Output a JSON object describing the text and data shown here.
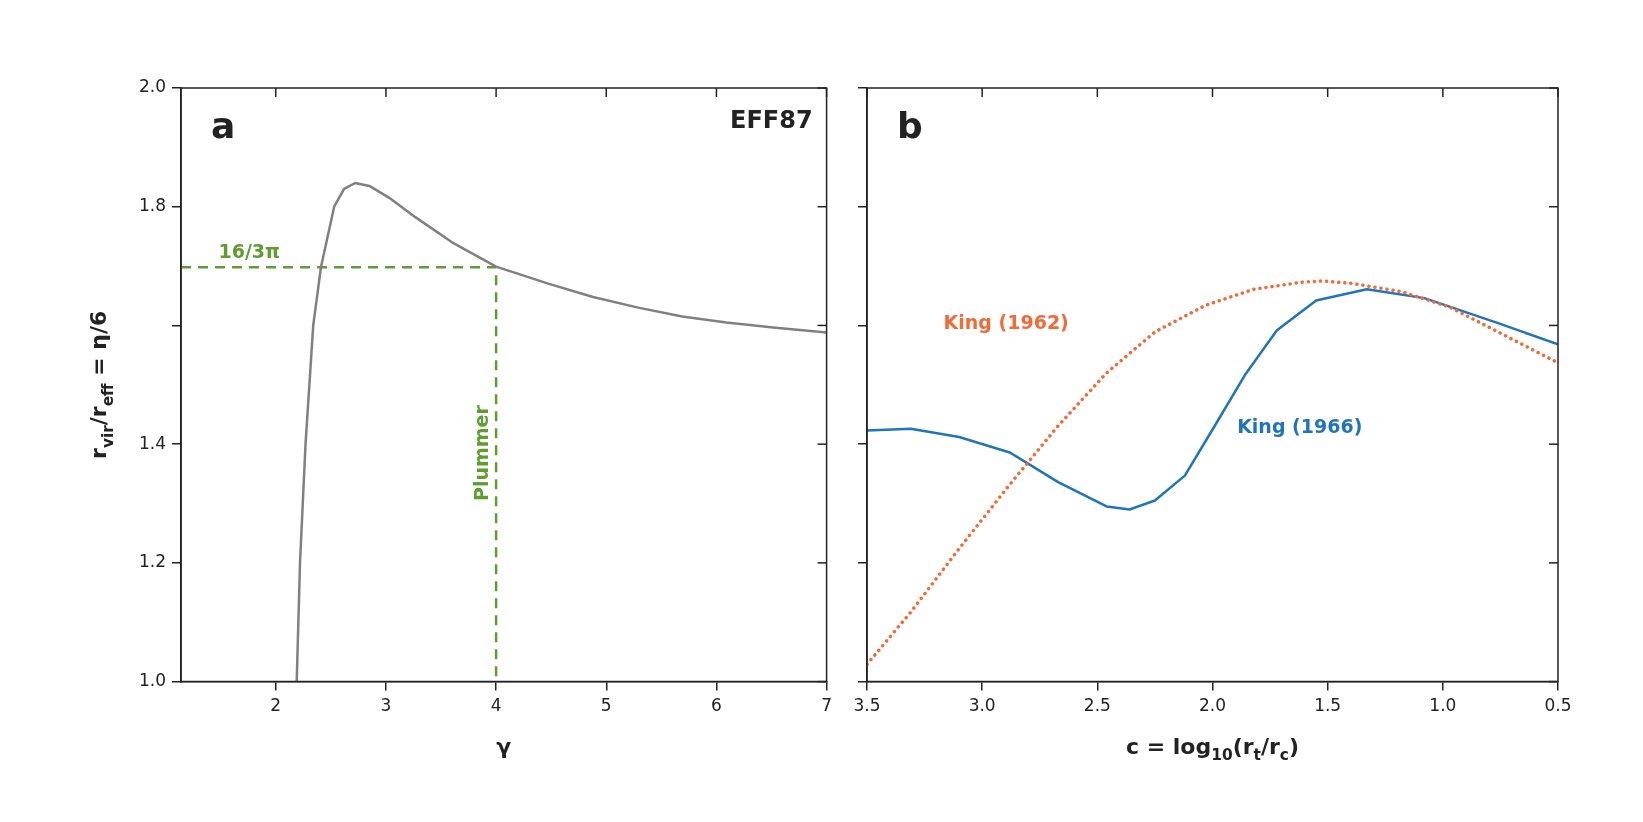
{
  "chart_data": [
    {
      "type": "line",
      "xlabel": "γ",
      "ylabel": "r$_{vir}$/r$_{eff}$ = η/6",
      "xlim": [
        1.14,
        7
      ],
      "ylim": [
        1,
        2
      ],
      "xticks": [
        2,
        3,
        4,
        5,
        6,
        7
      ],
      "yticks": [
        {
          "value": 1,
          "label": "1.0"
        },
        1.2,
        1.4,
        {
          "value": 1.6,
          "label": null
        },
        1.8,
        {
          "value": 2,
          "label": "2.0"
        }
      ],
      "annotations": [
        "a",
        "EFF87",
        {
          "text": "16/3π",
          "x": 1.48,
          "y": 1.698
        },
        {
          "text": "Plummer",
          "x": 4,
          "y": 1.385
        }
      ],
      "series": [
        {
          "color": "#808080",
          "x": [
            2.19,
            2.22,
            2.27,
            2.34,
            2.41,
            2.53,
            2.62,
            2.72,
            2.85,
            3.03,
            3.27,
            3.6,
            4.0,
            4.48,
            4.88,
            5.29,
            5.69,
            6.09,
            6.49,
            7.0
          ],
          "values": [
            1.0,
            1.2,
            1.4,
            1.6,
            1.698,
            1.8,
            1.83,
            1.84,
            1.835,
            1.815,
            1.782,
            1.74,
            1.699,
            1.67,
            1.648,
            1.63,
            1.615,
            1.605,
            1.597,
            1.588
          ]
        },
        {
          "color": "#5e9e2e",
          "line_style": "dashed",
          "x": [
            1.14,
            4,
            4
          ],
          "values": [
            1.698,
            1.698,
            1.0
          ]
        }
      ]
    },
    {
      "type": "line",
      "xlabel": "c = log$_{10}$(r$_{t}$/r$_{c}$)",
      "xlim": [
        3.5,
        0.5
      ],
      "ylim": [
        1,
        2
      ],
      "xticks": [
        3.5,
        {
          "value": 3,
          "label": "3.0"
        },
        2.5,
        {
          "value": 2,
          "label": "2.0"
        },
        1.5,
        {
          "value": 1,
          "label": "1.0"
        },
        0.5
      ],
      "yticks": [
        1,
        1.2,
        1.4,
        1.6,
        1.8,
        2
      ],
      "tick_labels": "x",
      "annotations": [
        "b"
      ],
      "series": [
        {
          "name": "King (1962)",
          "color": "#f26a35",
          "line_style": "dotted",
          "x": [
            3.5,
            3.31,
            3.1,
            2.88,
            2.67,
            2.46,
            2.25,
            2.03,
            1.82,
            1.61,
            1.52,
            1.4,
            1.18,
            0.97,
            0.76,
            0.5
          ],
          "values": [
            1.029,
            1.117,
            1.224,
            1.332,
            1.431,
            1.52,
            1.589,
            1.634,
            1.661,
            1.673,
            1.675,
            1.671,
            1.657,
            1.631,
            1.589,
            1.537
          ]
        },
        {
          "name": "King (1966)",
          "color": "#1f74c0",
          "x": [
            3.5,
            3.31,
            3.1,
            2.88,
            2.67,
            2.46,
            2.36,
            2.25,
            2.12,
            1.99,
            1.86,
            1.72,
            1.55,
            1.33,
            1.08,
            0.76,
            0.5
          ],
          "values": [
            1.423,
            1.426,
            1.412,
            1.386,
            1.336,
            1.295,
            1.29,
            1.305,
            1.347,
            1.431,
            1.516,
            1.592,
            1.642,
            1.661,
            1.646,
            1.604,
            1.568
          ]
        }
      ]
    }
  ]
}
